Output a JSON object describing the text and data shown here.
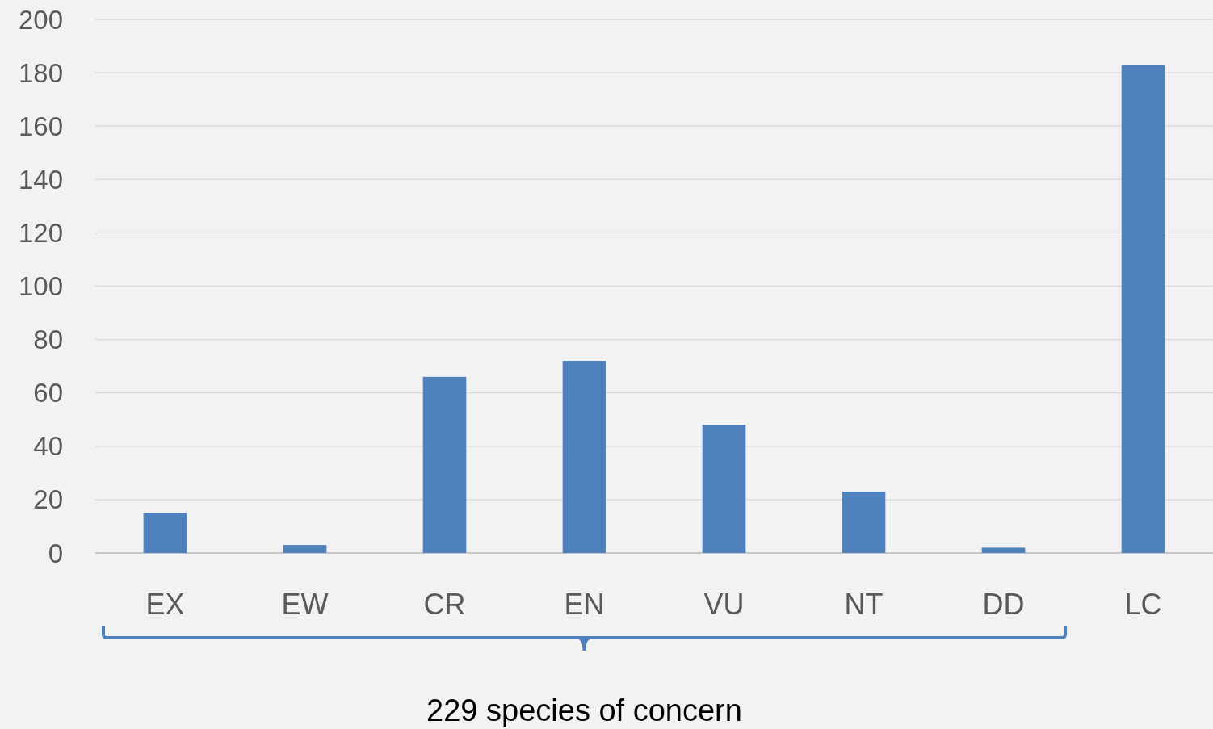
{
  "chart_data": {
    "type": "bar",
    "categories": [
      "EX",
      "EW",
      "CR",
      "EN",
      "VU",
      "NT",
      "DD",
      "LC"
    ],
    "values": [
      15,
      3,
      66,
      72,
      48,
      23,
      2,
      183
    ],
    "color": "#4f81bd",
    "ylim": [
      0,
      200
    ],
    "yticks": [
      0,
      20,
      40,
      60,
      80,
      100,
      120,
      140,
      160,
      180,
      200
    ],
    "grid": "y",
    "annotations": [
      "229 species of concern"
    ]
  }
}
